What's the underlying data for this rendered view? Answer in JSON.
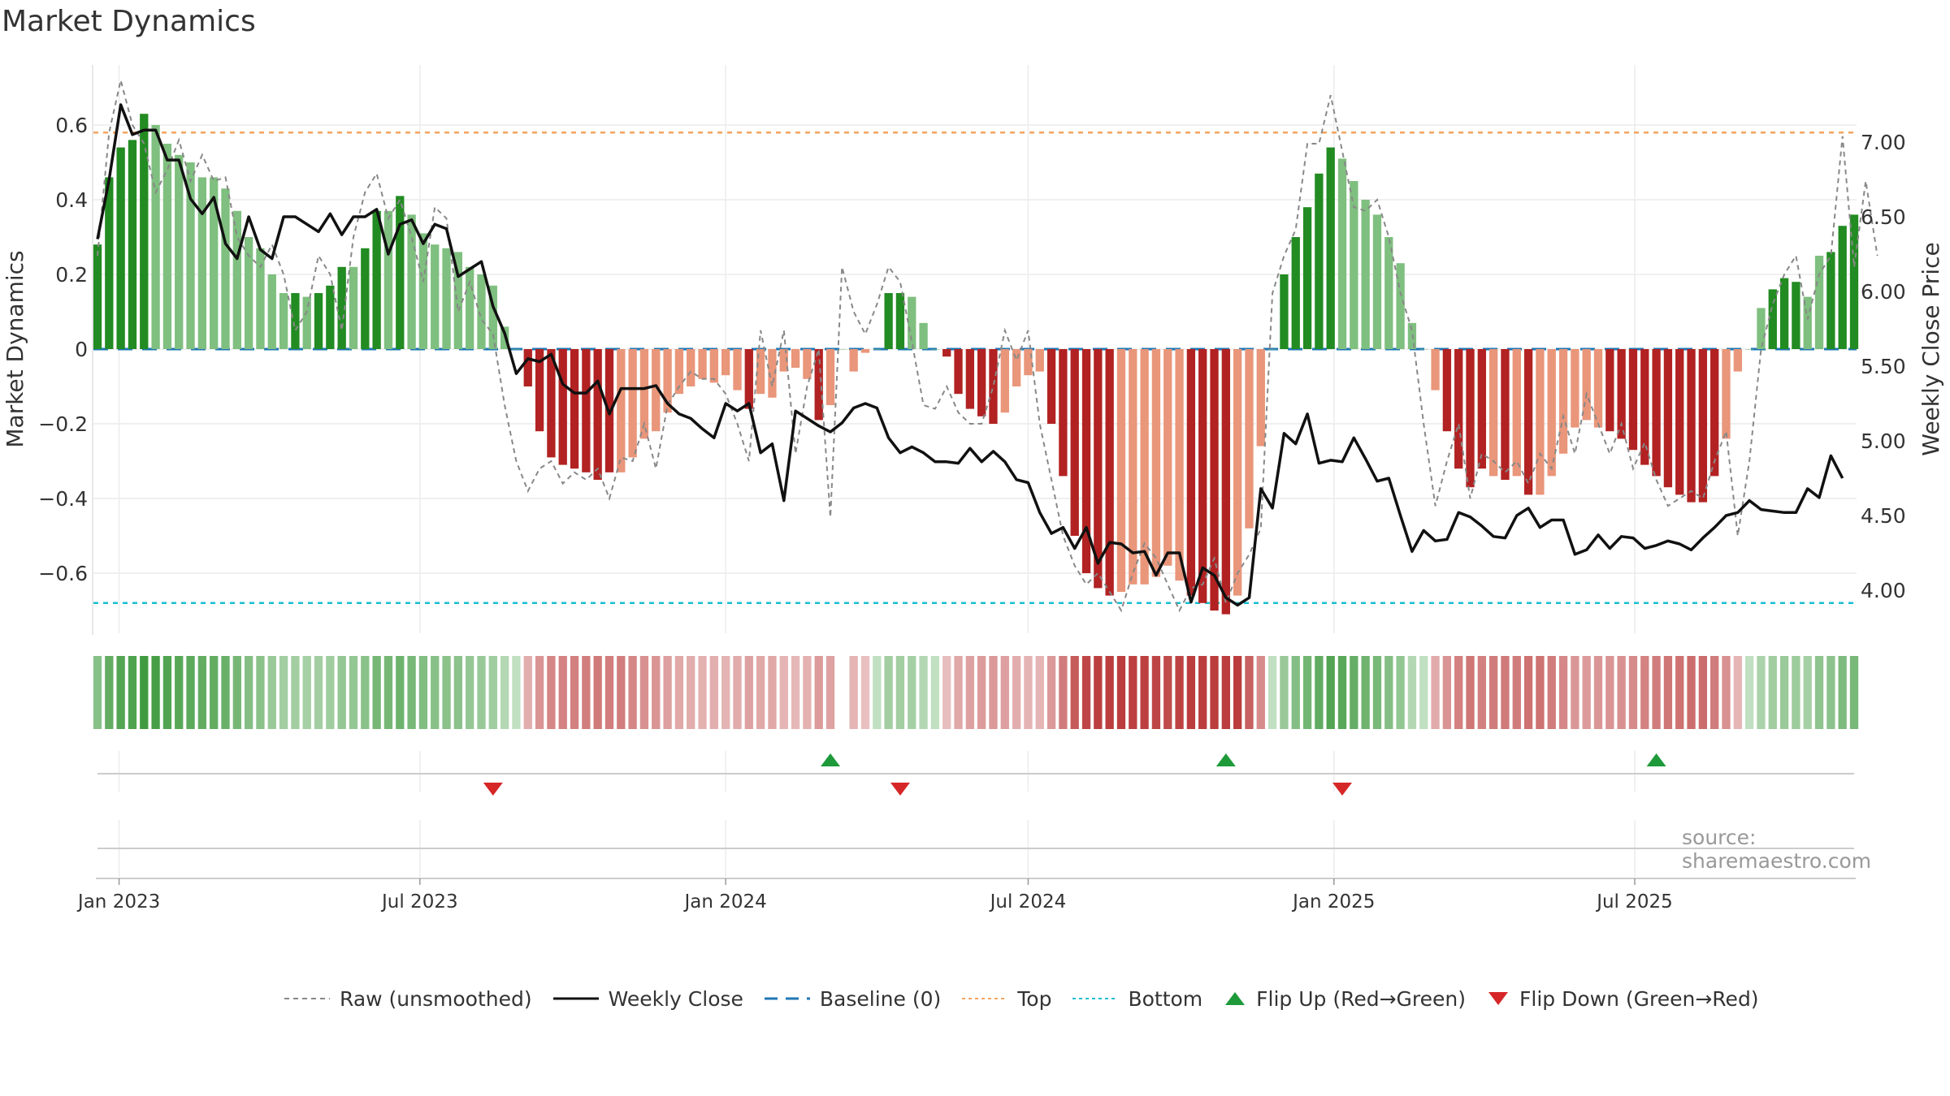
{
  "title": "Market Dynamics",
  "source": "source: sharemaestro.com",
  "colors": {
    "strong_green": "#228B22",
    "light_green": "#7FBF7F",
    "strong_red": "#B22222",
    "light_red": "#E9967A",
    "close_line": "#111111",
    "raw_line": "#888888",
    "baseline": "#1F77B4",
    "top": "#F4A460",
    "bottom": "#17BECF",
    "flip_up": "#1E9A3A",
    "flip_down": "#D62728"
  },
  "chart_data": {
    "type": "bar",
    "title": "Market Dynamics",
    "ylabel": "Market Dynamics",
    "ylabel_right": "Weekly Close Price",
    "ylim": [
      -0.76,
      0.76
    ],
    "ylim_right": [
      3.6,
      7.4
    ],
    "yticks": [
      -0.6,
      -0.4,
      -0.2,
      0,
      0.2,
      0.4,
      0.6
    ],
    "ytick_labels": [
      "−0.6",
      "−0.4",
      "−0.2",
      "0",
      "0.2",
      "0.4",
      "0.6"
    ],
    "yticks_right": [
      4.0,
      4.5,
      5.0,
      5.5,
      6.0,
      6.5,
      7.0
    ],
    "ytick_labels_right": [
      "4.00",
      "4.50",
      "5.00",
      "5.50",
      "6.00",
      "6.50",
      "7.00"
    ],
    "x_ticks": [
      "2023-01-01",
      "2023-07-01",
      "2024-01-01",
      "2024-07-01",
      "2025-01-01",
      "2025-07-01"
    ],
    "x_tick_labels": [
      "Jan 2023",
      "Jul 2023",
      "Jan 2024",
      "Jul 2024",
      "Jan 2025",
      "Jul 2025"
    ],
    "top_level": 0.58,
    "bottom_level": -0.68,
    "baseline": 0,
    "start_date": "2022-12-19",
    "week_step_days": 7,
    "dynamics": [
      0.28,
      0.46,
      0.54,
      0.56,
      0.63,
      0.6,
      0.55,
      0.52,
      0.5,
      0.46,
      0.46,
      0.43,
      0.37,
      0.3,
      0.27,
      0.2,
      0.15,
      0.15,
      0.14,
      0.15,
      0.17,
      0.22,
      0.22,
      0.27,
      0.37,
      0.37,
      0.41,
      0.36,
      0.31,
      0.28,
      0.27,
      0.26,
      0.22,
      0.2,
      0.17,
      0.06,
      0,
      -0.1,
      -0.22,
      -0.29,
      -0.31,
      -0.32,
      -0.33,
      -0.35,
      -0.33,
      -0.33,
      -0.29,
      -0.24,
      -0.22,
      -0.17,
      -0.12,
      -0.1,
      -0.08,
      -0.09,
      -0.07,
      -0.11,
      -0.16,
      -0.12,
      -0.13,
      -0.06,
      -0.05,
      -0.08,
      -0.19,
      -0.15,
      0,
      -0.06,
      -0.01,
      0,
      0.15,
      0.15,
      0.14,
      0.07,
      0,
      -0.02,
      -0.12,
      -0.16,
      -0.18,
      -0.2,
      -0.17,
      -0.1,
      -0.07,
      -0.06,
      -0.2,
      -0.34,
      -0.5,
      -0.6,
      -0.64,
      -0.66,
      -0.65,
      -0.63,
      -0.63,
      -0.61,
      -0.58,
      -0.62,
      -0.66,
      -0.68,
      -0.7,
      -0.71,
      -0.66,
      -0.48,
      -0.26,
      0,
      0.2,
      0.3,
      0.38,
      0.47,
      0.54,
      0.51,
      0.45,
      0.4,
      0.36,
      0.3,
      0.23,
      0.07,
      0,
      -0.11,
      -0.22,
      -0.32,
      -0.37,
      -0.32,
      -0.34,
      -0.35,
      -0.34,
      -0.39,
      -0.39,
      -0.34,
      -0.28,
      -0.21,
      -0.19,
      -0.21,
      -0.22,
      -0.24,
      -0.27,
      -0.31,
      -0.34,
      -0.37,
      -0.39,
      -0.41,
      -0.41,
      -0.34,
      -0.24,
      -0.06,
      0,
      0.11,
      0.16,
      0.19,
      0.18,
      0.14,
      0.25,
      0.26,
      0.33,
      0.36
    ],
    "dynamics_strength": [
      1,
      1,
      1,
      1,
      1,
      0,
      0,
      0,
      0,
      0,
      0,
      0,
      0,
      0,
      0,
      0,
      0,
      1,
      0,
      1,
      1,
      1,
      0,
      1,
      1,
      0,
      1,
      0,
      0,
      0,
      0,
      0,
      0,
      0,
      0,
      0,
      0,
      1,
      1,
      1,
      1,
      1,
      1,
      1,
      1,
      0,
      0,
      0,
      0,
      0,
      0,
      0,
      0,
      0,
      0,
      0,
      1,
      0,
      0,
      0,
      0,
      0,
      1,
      0,
      0,
      0,
      0,
      0,
      1,
      1,
      0,
      0,
      0,
      1,
      1,
      1,
      1,
      1,
      0,
      0,
      0,
      0,
      1,
      1,
      1,
      1,
      1,
      1,
      0,
      0,
      0,
      0,
      0,
      0,
      1,
      1,
      1,
      1,
      0,
      0,
      0,
      0,
      1,
      1,
      1,
      1,
      1,
      0,
      0,
      0,
      0,
      0,
      0,
      0,
      0,
      0,
      1,
      1,
      1,
      1,
      0,
      1,
      0,
      1,
      0,
      0,
      0,
      0,
      0,
      0,
      1,
      1,
      1,
      1,
      1,
      1,
      1,
      1,
      1,
      1,
      0,
      0,
      0,
      0,
      1,
      1,
      1,
      0,
      0,
      1,
      1,
      1,
      1
    ],
    "weekly_close": [
      6.35,
      6.75,
      7.25,
      7.05,
      7.08,
      7.08,
      6.88,
      6.88,
      6.62,
      6.52,
      6.63,
      6.32,
      6.22,
      6.5,
      6.28,
      6.22,
      6.5,
      6.5,
      6.45,
      6.4,
      6.52,
      6.38,
      6.5,
      6.5,
      6.55,
      6.25,
      6.45,
      6.48,
      6.32,
      6.45,
      6.42,
      6.1,
      6.15,
      6.2,
      5.9,
      5.72,
      5.45,
      5.55,
      5.53,
      5.58,
      5.38,
      5.32,
      5.32,
      5.4,
      5.18,
      5.35,
      5.35,
      5.35,
      5.37,
      5.25,
      5.18,
      5.15,
      5.08,
      5.02,
      5.25,
      5.2,
      5.25,
      4.92,
      4.98,
      4.6,
      5.2,
      5.15,
      5.1,
      5.06,
      5.12,
      5.22,
      5.25,
      5.22,
      5.02,
      4.92,
      4.96,
      4.92,
      4.86,
      4.86,
      4.85,
      4.95,
      4.86,
      4.93,
      4.86,
      4.74,
      4.72,
      4.52,
      4.38,
      4.42,
      4.28,
      4.42,
      4.18,
      4.32,
      4.31,
      4.25,
      4.26,
      4.1,
      4.25,
      4.25,
      3.92,
      4.15,
      4.1,
      3.95,
      3.9,
      3.95,
      4.68,
      4.55,
      5.05,
      4.98,
      5.18,
      4.85,
      4.87,
      4.86,
      5.02,
      4.88,
      4.73,
      4.75,
      4.5,
      4.26,
      4.4,
      4.33,
      4.34,
      4.52,
      4.49,
      4.43,
      4.36,
      4.35,
      4.5,
      4.55,
      4.42,
      4.47,
      4.47,
      4.24,
      4.27,
      4.37,
      4.28,
      4.36,
      4.35,
      4.28,
      4.3,
      4.33,
      4.31,
      4.27,
      4.35,
      4.42,
      4.5,
      4.52,
      4.6,
      4.54,
      4.53,
      4.52,
      4.52,
      4.68,
      4.62,
      4.9,
      4.75
    ],
    "raw": [
      0.25,
      0.58,
      0.72,
      0.6,
      0.55,
      0.42,
      0.48,
      0.56,
      0.45,
      0.52,
      0.45,
      0.46,
      0.3,
      0.25,
      0.22,
      0.28,
      0.2,
      0.05,
      0.1,
      0.25,
      0.2,
      0.05,
      0.3,
      0.42,
      0.47,
      0.35,
      0.4,
      0.3,
      0.18,
      0.38,
      0.35,
      0.1,
      0.18,
      0.08,
      0.04,
      -0.15,
      -0.3,
      -0.38,
      -0.32,
      -0.3,
      -0.36,
      -0.33,
      -0.35,
      -0.32,
      -0.4,
      -0.29,
      -0.3,
      -0.2,
      -0.32,
      -0.15,
      -0.1,
      -0.06,
      -0.08,
      -0.08,
      -0.12,
      -0.2,
      -0.3,
      0.05,
      -0.1,
      0.05,
      -0.28,
      -0.1,
      0.0,
      -0.45,
      0.22,
      0.1,
      0.04,
      0.12,
      0.22,
      0.18,
      0.02,
      -0.15,
      -0.16,
      -0.1,
      -0.17,
      -0.2,
      -0.2,
      -0.1,
      0.05,
      -0.03,
      0.05,
      -0.2,
      -0.35,
      -0.5,
      -0.58,
      -0.63,
      -0.6,
      -0.65,
      -0.7,
      -0.6,
      -0.52,
      -0.56,
      -0.63,
      -0.7,
      -0.64,
      -0.63,
      -0.56,
      -0.68,
      -0.6,
      -0.55,
      -0.48,
      0.15,
      0.25,
      0.32,
      0.55,
      0.55,
      0.68,
      0.53,
      0.38,
      0.37,
      0.4,
      0.3,
      0.15,
      0.05,
      -0.2,
      -0.42,
      -0.3,
      -0.2,
      -0.4,
      -0.28,
      -0.3,
      -0.33,
      -0.3,
      -0.36,
      -0.28,
      -0.32,
      -0.18,
      -0.28,
      -0.12,
      -0.2,
      -0.28,
      -0.2,
      -0.32,
      -0.25,
      -0.35,
      -0.42,
      -0.4,
      -0.38,
      -0.4,
      -0.3,
      -0.22,
      -0.5,
      -0.3,
      0.0,
      0.12,
      0.2,
      0.25,
      0.08,
      0.2,
      0.25,
      0.57,
      0.22,
      0.45,
      0.25
    ],
    "flips_up": [
      "2024-03-04",
      "2024-10-28",
      "2025-07-14"
    ],
    "flips_down": [
      "2023-08-14",
      "2024-04-15",
      "2025-01-06"
    ],
    "legend": [
      "Raw (unsmoothed)",
      "Weekly Close",
      "Baseline (0)",
      "Top",
      "Bottom",
      "Flip Up (Red→Green)",
      "Flip Down (Green→Red)"
    ],
    "grid": true,
    "legend_position": "bottom-center"
  }
}
